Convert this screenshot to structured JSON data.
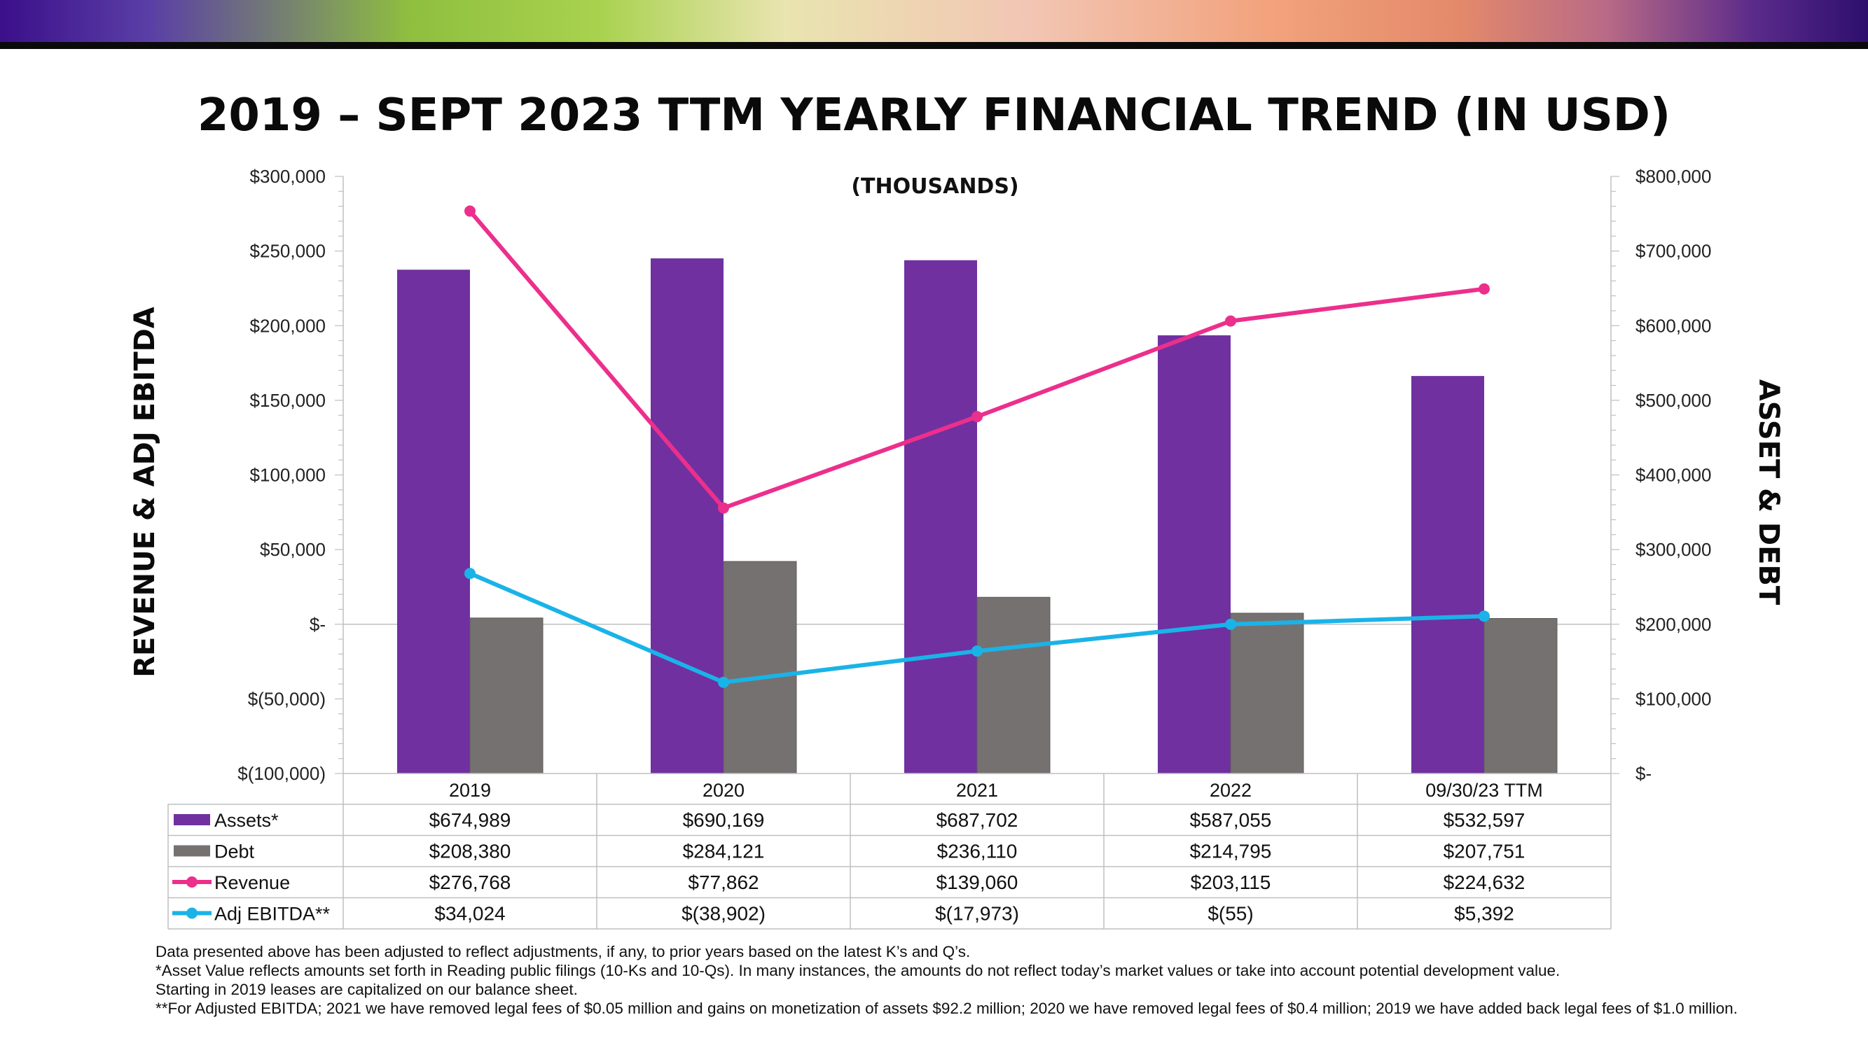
{
  "banner": {
    "gradient_colors": [
      "#3b0f8a",
      "#8fbf3f",
      "#e9e4b0",
      "#f2a27c",
      "#2e0f6e"
    ]
  },
  "chart_data": {
    "type": "bar",
    "title": "2019 – SEPT 2023 TTM YEARLY FINANCIAL TREND (IN USD)",
    "subtitle": "(THOUSANDS)",
    "ylabel_left": "REVENUE & ADJ EBITDA",
    "ylabel_right": "ASSET & DEBT",
    "categories": [
      "2019",
      "2020",
      "2021",
      "2022",
      "09/30/23 TTM"
    ],
    "ylim_left": [
      -100000,
      300000
    ],
    "ylim_right": [
      0,
      800000
    ],
    "ticks_left": [
      300000,
      250000,
      200000,
      150000,
      100000,
      50000,
      0,
      -50000,
      -100000
    ],
    "tick_labels_left": [
      "$300,000",
      "$250,000",
      "$200,000",
      "$150,000",
      "$100,000",
      "$50,000",
      "$-",
      "$(50,000)",
      "$(100,000)"
    ],
    "ticks_right": [
      800000,
      700000,
      600000,
      500000,
      400000,
      300000,
      200000,
      100000,
      0
    ],
    "tick_labels_right": [
      "$800,000",
      "$700,000",
      "$600,000",
      "$500,000",
      "$400,000",
      "$300,000",
      "$200,000",
      "$100,000",
      "$-"
    ],
    "series": [
      {
        "name": "Assets*",
        "type": "bar",
        "axis": "right",
        "color": "#7030a0",
        "values": [
          674989,
          690169,
          687702,
          587055,
          532597
        ],
        "labels": [
          "$674,989",
          "$690,169",
          "$687,702",
          "$587,055",
          "$532,597"
        ]
      },
      {
        "name": "Debt",
        "type": "bar",
        "axis": "right",
        "color": "#767171",
        "values": [
          208380,
          284121,
          236110,
          214795,
          207751
        ],
        "labels": [
          "$208,380",
          "$284,121",
          "$236,110",
          "$214,795",
          "$207,751"
        ]
      },
      {
        "name": "Revenue",
        "type": "line",
        "axis": "left",
        "color": "#ec2f8c",
        "values": [
          276768,
          77862,
          139060,
          203115,
          224632
        ],
        "labels": [
          "$276,768",
          "$77,862",
          "$139,060",
          "$203,115",
          "$224,632"
        ]
      },
      {
        "name": "Adj EBITDA**",
        "type": "line",
        "axis": "left",
        "color": "#1ab3e8",
        "values": [
          34024,
          -38902,
          -17973,
          -55,
          5392
        ],
        "labels": [
          "$34,024",
          "$(38,902)",
          "$(17,973)",
          "$(55)",
          "$5,392"
        ]
      }
    ],
    "grid": false,
    "legend": "bottom data table"
  },
  "footnotes": [
    "Data presented above has been adjusted to reflect adjustments, if any, to prior years based on the latest K’s and Q’s.",
    "*Asset Value reflects amounts set forth in Reading public filings (10-Ks and 10-Qs). In many instances, the amounts do not reflect today’s market values or take into account potential development value.",
    "Starting in 2019   leases are capitalized on our balance sheet.",
    "**For Adjusted EBITDA; 2021 we have removed legal fees of $0.05 million and gains on monetization of assets $92.2 million; 2020 we have removed legal fees of $0.4 million; 2019 we have added back legal fees of $1.0 million."
  ]
}
